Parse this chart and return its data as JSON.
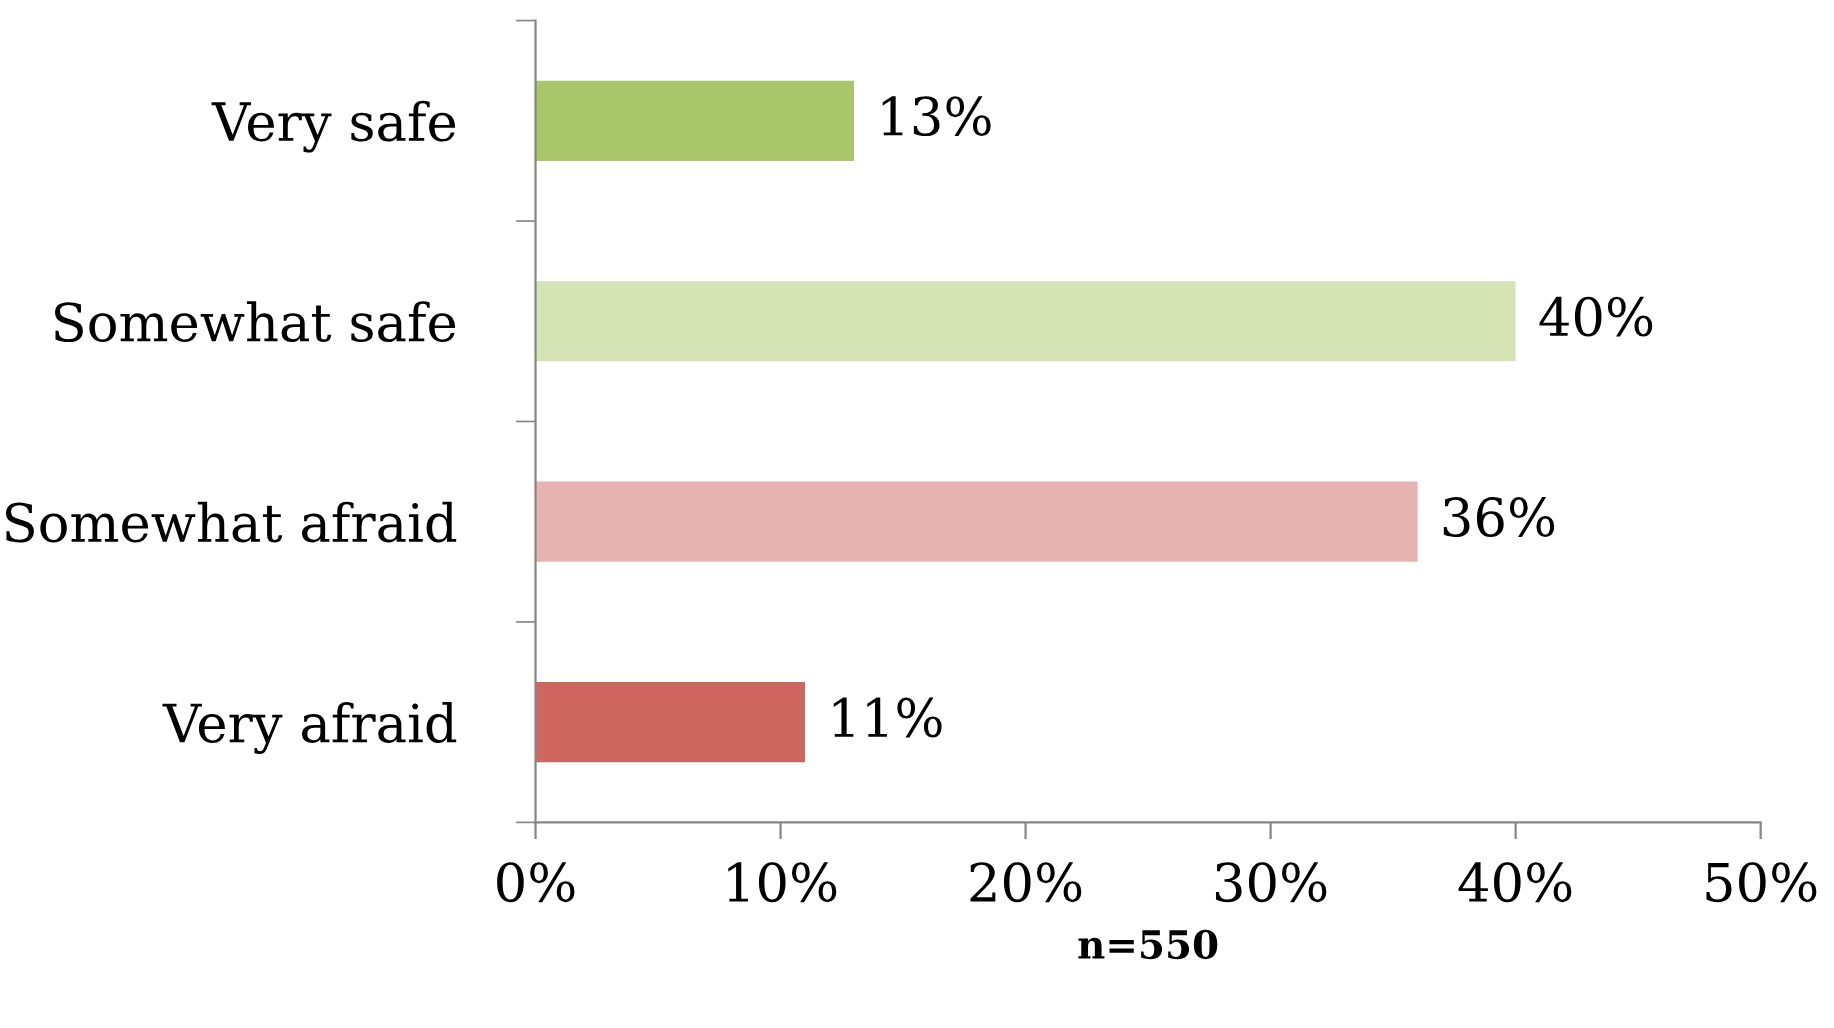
{
  "chart_data": {
    "type": "bar",
    "orientation": "horizontal",
    "categories": [
      "Very safe",
      "Somewhat safe",
      "Somewhat afraid",
      "Very afraid"
    ],
    "values": [
      13,
      40,
      36,
      11
    ],
    "colors": [
      "#a9c66b",
      "#d5e3b5",
      "#e6b3b0",
      "#cd665f"
    ],
    "value_labels": [
      "13%",
      "40%",
      "36%",
      "11%"
    ],
    "xlim": [
      0,
      50
    ],
    "xticks": [
      {
        "value": 0,
        "label": "0%"
      },
      {
        "value": 10,
        "label": "10%"
      },
      {
        "value": 20,
        "label": "20%"
      },
      {
        "value": 30,
        "label": "30%"
      },
      {
        "value": 40,
        "label": "40%"
      },
      {
        "value": 50,
        "label": "50%"
      }
    ],
    "xlabel": "n=550",
    "grid": false,
    "legend": false
  }
}
